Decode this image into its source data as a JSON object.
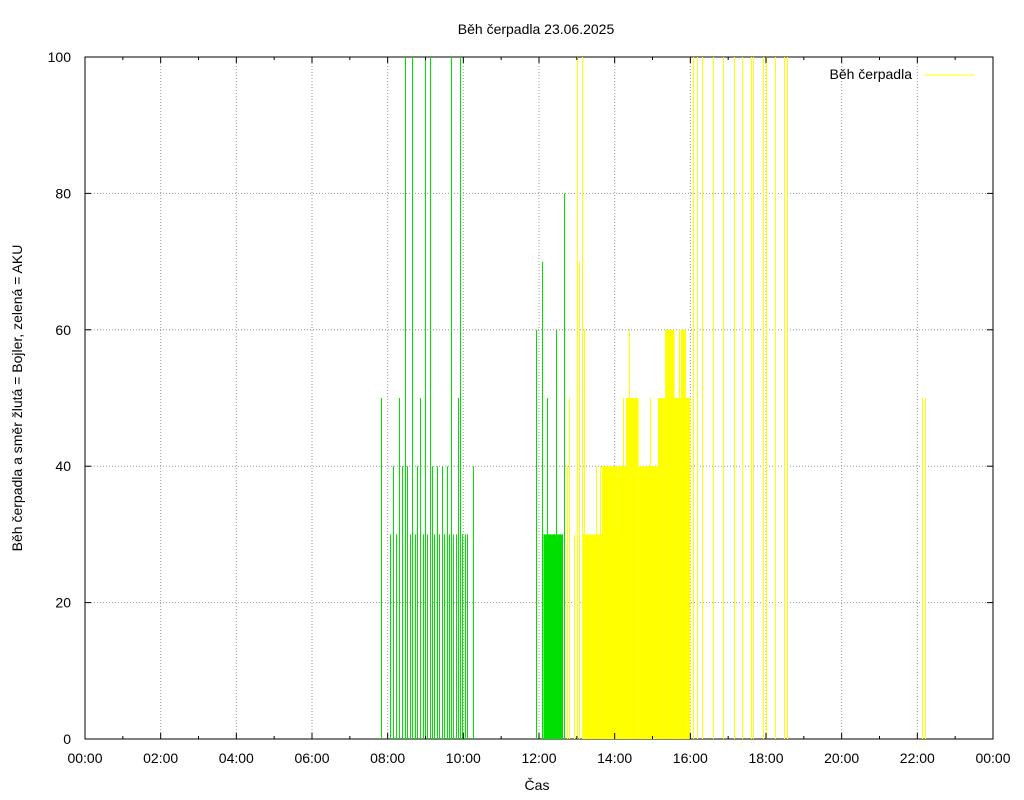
{
  "chart_data": {
    "type": "bar",
    "title": "Běh čerpadla 23.06.2025",
    "xlabel": "Čas",
    "ylabel": "Běh čerpadla a směr žlutá = Bojler, zelená = AKU",
    "xlim_hours": [
      0,
      24
    ],
    "ylim": [
      0,
      100
    ],
    "x_ticks": [
      "00:00",
      "02:00",
      "04:00",
      "06:00",
      "08:00",
      "10:00",
      "12:00",
      "14:00",
      "16:00",
      "18:00",
      "20:00",
      "22:00",
      "00:00"
    ],
    "y_ticks": [
      "0",
      "20",
      "40",
      "60",
      "80",
      "100"
    ],
    "grid": true,
    "legend": {
      "position": "top-right",
      "entries": [
        {
          "label": "Běh čerpadla",
          "color": "#ffff00"
        }
      ]
    },
    "series": [
      {
        "direction": "AKU",
        "color": "#00e000",
        "points": [
          [
            "07:50",
            50
          ],
          [
            "08:04",
            30
          ],
          [
            "08:08",
            40
          ],
          [
            "08:14",
            30
          ],
          [
            "08:18",
            50
          ],
          [
            "08:22",
            40
          ],
          [
            "08:27",
            100
          ],
          [
            "08:31",
            40
          ],
          [
            "08:35",
            30
          ],
          [
            "08:39",
            100
          ],
          [
            "08:43",
            30
          ],
          [
            "08:47",
            40
          ],
          [
            "08:52",
            50
          ],
          [
            "08:56",
            30
          ],
          [
            "08:59",
            100
          ],
          [
            "09:03",
            30
          ],
          [
            "09:07",
            100
          ],
          [
            "09:10",
            40
          ],
          [
            "09:14",
            30
          ],
          [
            "09:18",
            40
          ],
          [
            "09:22",
            30
          ],
          [
            "09:26",
            40
          ],
          [
            "09:30",
            30
          ],
          [
            "09:34",
            40
          ],
          [
            "09:38",
            30
          ],
          [
            "09:41",
            100
          ],
          [
            "09:44",
            30
          ],
          [
            "09:48",
            30
          ],
          [
            "09:52",
            50
          ],
          [
            "09:55",
            100
          ],
          [
            "09:58",
            30
          ],
          [
            "10:02",
            30
          ],
          [
            "10:06",
            30
          ],
          [
            "10:15",
            40
          ],
          [
            "11:56",
            60
          ],
          [
            "12:05",
            70
          ],
          [
            "12:08",
            30
          ],
          [
            "12:12",
            50
          ],
          [
            "12:15",
            30
          ],
          [
            "12:18",
            30
          ],
          [
            "12:21",
            30
          ],
          [
            "12:24",
            30
          ],
          [
            "12:27",
            60
          ],
          [
            "12:30",
            30
          ],
          [
            "12:33",
            30
          ],
          [
            "12:36",
            30
          ],
          [
            "12:40",
            80
          ]
        ],
        "blocks": [
          {
            "from": "12:07",
            "to": "12:37",
            "value": 30
          }
        ]
      },
      {
        "direction": "Bojler",
        "color": "#ffff00",
        "points": [
          [
            "12:44",
            40
          ],
          [
            "12:48",
            50
          ],
          [
            "12:56",
            30
          ],
          [
            "13:00",
            100
          ],
          [
            "13:04",
            70
          ],
          [
            "13:08",
            100
          ],
          [
            "13:12",
            60
          ],
          [
            "13:30",
            40
          ],
          [
            "13:37",
            40
          ],
          [
            "13:41",
            40
          ],
          [
            "13:46",
            40
          ],
          [
            "13:52",
            40
          ],
          [
            "14:14",
            50
          ],
          [
            "14:22",
            60
          ],
          [
            "14:56",
            50
          ],
          [
            "15:08",
            50
          ],
          [
            "15:42",
            60
          ],
          [
            "15:50",
            50
          ],
          [
            "16:05",
            100
          ],
          [
            "16:10",
            100
          ],
          [
            "16:18",
            100
          ],
          [
            "16:36",
            100
          ],
          [
            "16:52",
            100
          ],
          [
            "17:10",
            100
          ],
          [
            "17:22",
            100
          ],
          [
            "17:36",
            100
          ],
          [
            "17:40",
            100
          ],
          [
            "17:56",
            100
          ],
          [
            "18:00",
            100
          ],
          [
            "18:14",
            100
          ],
          [
            "18:28",
            100
          ],
          [
            "18:34",
            100
          ],
          [
            "22:08",
            50
          ],
          [
            "22:12",
            50
          ]
        ],
        "blocks": [
          {
            "from": "13:10",
            "to": "13:35",
            "value": 30
          },
          {
            "from": "13:35",
            "to": "14:05",
            "value": 30
          },
          {
            "from": "13:40",
            "to": "14:05",
            "value": 40
          },
          {
            "from": "14:05",
            "to": "14:18",
            "value": 40
          },
          {
            "from": "14:18",
            "to": "14:38",
            "value": 50
          },
          {
            "from": "14:38",
            "to": "15:10",
            "value": 40
          },
          {
            "from": "15:10",
            "to": "15:20",
            "value": 50
          },
          {
            "from": "15:20",
            "to": "15:35",
            "value": 60
          },
          {
            "from": "15:35",
            "to": "15:45",
            "value": 50
          },
          {
            "from": "15:45",
            "to": "15:53",
            "value": 60
          },
          {
            "from": "15:53",
            "to": "16:00",
            "value": 50
          }
        ]
      }
    ]
  }
}
